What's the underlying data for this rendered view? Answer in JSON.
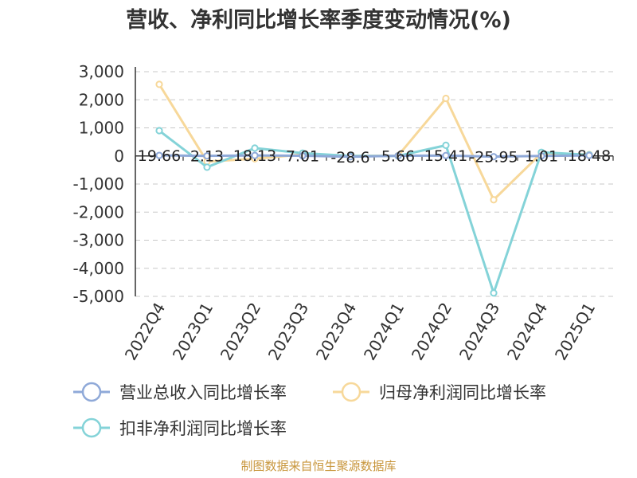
{
  "chart_data": {
    "type": "line",
    "title": "营收、净利同比增长率季度变动情况(%)",
    "categories": [
      "2022Q4",
      "2023Q1",
      "2023Q2",
      "2023Q3",
      "2023Q4",
      "2024Q1",
      "2024Q2",
      "2024Q3",
      "2024Q4",
      "2025Q1"
    ],
    "ylim": [
      -5000,
      3000
    ],
    "yticks": [
      3000,
      2000,
      1000,
      0,
      -1000,
      -2000,
      -3000,
      -4000,
      -5000
    ],
    "ytick_labels": [
      "3,000",
      "2,000",
      "1,000",
      "0",
      "-1,000",
      "-2,000",
      "-3,000",
      "-4,000",
      "-5,000"
    ],
    "grid": true,
    "legend_position": "bottom",
    "series": [
      {
        "name": "营业总收入同比增长率",
        "color": "#8fa9d8",
        "values": [
          19.66,
          2.13,
          18.13,
          7.01,
          -28.6,
          5.66,
          15.41,
          -25.95,
          1.01,
          18.48
        ],
        "labels": [
          "19.66",
          "2.13",
          "18.13",
          "7.01",
          "-28.6",
          "5.66",
          "15.41",
          "-25.95",
          "1.01",
          "18.48"
        ],
        "show_labels": true
      },
      {
        "name": "归母净利润同比增长率",
        "color": "#f7d89a",
        "values": [
          2550,
          -200,
          -100,
          50,
          0,
          10,
          2050,
          -1560,
          100,
          50
        ],
        "show_labels": false
      },
      {
        "name": "扣非净利润同比增长率",
        "color": "#84d3d8",
        "values": [
          900,
          -400,
          280,
          100,
          0,
          0,
          380,
          -4880,
          130,
          40
        ],
        "show_labels": false
      }
    ],
    "source": "制图数据来自恒生聚源数据库"
  }
}
